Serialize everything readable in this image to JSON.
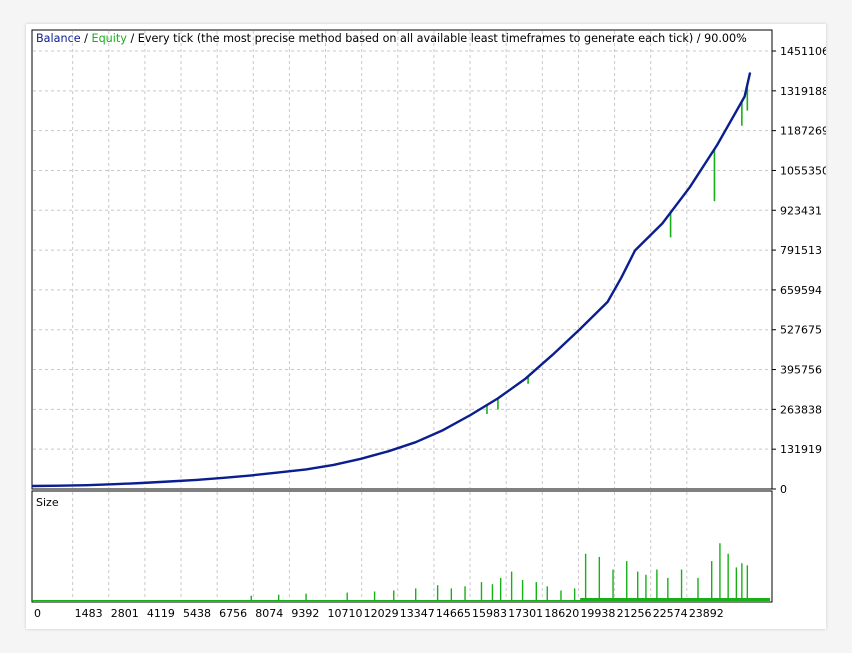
{
  "chart_data": {
    "type": "line",
    "header": {
      "balance_label": "Balance",
      "sep1": " / ",
      "equity_label": "Equity",
      "method_text": " / Every tick (the most precise method based on all available least timeframes to generate each tick) / 90.00%"
    },
    "colors": {
      "balance": "#0a1e8f",
      "equity": "#17b017",
      "grid": "#c8c8c8",
      "size_bars": "#17b017"
    },
    "xlim": [
      0,
      27000
    ],
    "ylim": [
      0,
      1451106
    ],
    "x_ticks": [
      0,
      1483,
      2801,
      4119,
      5438,
      6756,
      8074,
      9392,
      10710,
      12029,
      13347,
      14665,
      15983,
      17301,
      18620,
      19938,
      21256,
      22574,
      23892
    ],
    "x_tick_labels": [
      "0",
      "1483",
      "2801",
      "4119",
      "5438",
      "6756",
      "8074",
      "9392",
      "10710",
      "12029",
      "13347",
      "14665",
      "15983",
      "17301",
      "18620",
      "19938",
      "21256",
      "22574",
      "23892"
    ],
    "y_ticks": [
      0,
      131919,
      263838,
      395756,
      527675,
      659594,
      791513,
      923431,
      1055350,
      1187269,
      1319188,
      1451106
    ],
    "y_tick_labels": [
      "0",
      "131919",
      "263838",
      "395756",
      "527675",
      "659594",
      "791513",
      "923431",
      "1055350",
      "1187269",
      "1319188",
      "1451106"
    ],
    "series": [
      {
        "name": "Balance",
        "x": [
          0,
          1000,
          2000,
          3000,
          4000,
          5000,
          6000,
          7000,
          8000,
          9000,
          10000,
          11000,
          12000,
          13000,
          14000,
          15000,
          16000,
          17000,
          18000,
          19000,
          20000,
          21000,
          21500,
          22000,
          23000,
          24000,
          25000,
          26000,
          26200
        ],
        "values": [
          10000,
          11000,
          12500,
          16000,
          20000,
          25000,
          30000,
          37000,
          45000,
          55000,
          65000,
          80000,
          100000,
          125000,
          155000,
          195000,
          245000,
          300000,
          365000,
          445000,
          530000,
          620000,
          700000,
          790000,
          880000,
          1000000,
          1140000,
          1300000,
          1380000
        ]
      }
    ],
    "equity_dips": [
      {
        "x": 16600,
        "value": 295000
      },
      {
        "x": 17000,
        "value": 310000
      },
      {
        "x": 18100,
        "value": 395000
      },
      {
        "x": 20300,
        "value": 600000
      },
      {
        "x": 23300,
        "value": 880000
      },
      {
        "x": 24900,
        "value": 1000000
      },
      {
        "x": 25900,
        "value": 1250000
      },
      {
        "x": 26100,
        "value": 1300000
      }
    ],
    "size_panel": {
      "label": "Size",
      "bars": [
        {
          "x": 8000,
          "h": 0.05
        },
        {
          "x": 9000,
          "h": 0.06
        },
        {
          "x": 10000,
          "h": 0.07
        },
        {
          "x": 11500,
          "h": 0.08
        },
        {
          "x": 12500,
          "h": 0.09
        },
        {
          "x": 13200,
          "h": 0.1
        },
        {
          "x": 14000,
          "h": 0.12
        },
        {
          "x": 14800,
          "h": 0.15
        },
        {
          "x": 15300,
          "h": 0.12
        },
        {
          "x": 15800,
          "h": 0.14
        },
        {
          "x": 16400,
          "h": 0.18
        },
        {
          "x": 16800,
          "h": 0.16
        },
        {
          "x": 17100,
          "h": 0.22
        },
        {
          "x": 17500,
          "h": 0.28
        },
        {
          "x": 17900,
          "h": 0.2
        },
        {
          "x": 18400,
          "h": 0.18
        },
        {
          "x": 18800,
          "h": 0.14
        },
        {
          "x": 19300,
          "h": 0.1
        },
        {
          "x": 19800,
          "h": 0.12
        },
        {
          "x": 20200,
          "h": 0.45
        },
        {
          "x": 20700,
          "h": 0.42
        },
        {
          "x": 21200,
          "h": 0.3
        },
        {
          "x": 21700,
          "h": 0.38
        },
        {
          "x": 22100,
          "h": 0.28
        },
        {
          "x": 22400,
          "h": 0.25
        },
        {
          "x": 22800,
          "h": 0.3
        },
        {
          "x": 23200,
          "h": 0.22
        },
        {
          "x": 23700,
          "h": 0.3
        },
        {
          "x": 24300,
          "h": 0.22
        },
        {
          "x": 24800,
          "h": 0.38
        },
        {
          "x": 25100,
          "h": 0.55
        },
        {
          "x": 25400,
          "h": 0.45
        },
        {
          "x": 25700,
          "h": 0.32
        },
        {
          "x": 25900,
          "h": 0.36
        },
        {
          "x": 26100,
          "h": 0.34
        }
      ]
    }
  }
}
